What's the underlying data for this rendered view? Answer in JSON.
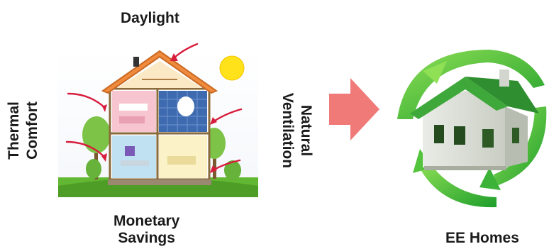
{
  "labels": {
    "daylight": "Daylight",
    "thermal_line1": "Thermal",
    "thermal_line2": "Comfort",
    "natural_line1": "Natural",
    "natural_line2": "Ventilation",
    "monetary_line1": "Monetary",
    "monetary_line2": "Savings",
    "ee_homes": "EE Homes"
  },
  "colors": {
    "red_arrow": "#d81c3c",
    "big_arrow": "#ef7a78",
    "sun": "#ffe21a",
    "grass": "#62b832",
    "roof": "#f08a3c",
    "green_swoosh": "#3ec83a"
  },
  "icons": [
    "sun-icon",
    "house-cutaway-illustration",
    "eco-house-illustration",
    "right-arrow-icon",
    "recycle-arrows-icon"
  ]
}
